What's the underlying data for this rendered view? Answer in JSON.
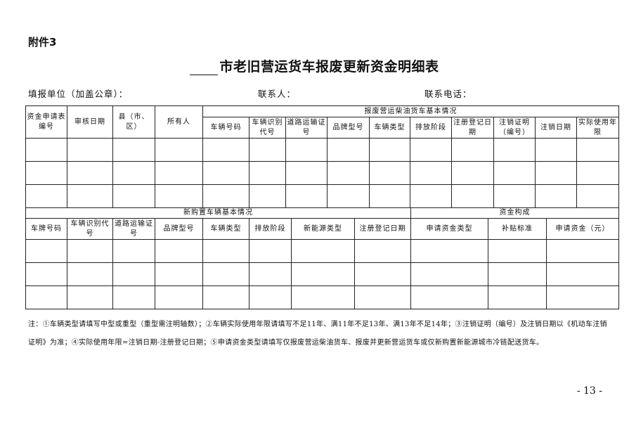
{
  "attachment": "附件3",
  "title": "市老旧营运货车报废更新资金明细表",
  "meta": {
    "unit": "填报单位（加盖公章）：",
    "contact": "联系人：",
    "phone": "联系电话："
  },
  "table1": {
    "left_headers": [
      "资金申请表编号",
      "审核日期",
      "县（市、区）",
      "所有人"
    ],
    "group": "报废营运柴油货车基本情况",
    "sub_headers": [
      "车辆号码",
      "车辆识别代号",
      "道路运输证号",
      "品牌型号",
      "车辆类型",
      "排放阶段",
      "注册登记日期",
      "注销证明（编号）",
      "注销日期",
      "实际使用年限"
    ]
  },
  "table2": {
    "group1": "新购置车辆基本情况",
    "group2": "资金构成",
    "headers": [
      "车牌号码",
      "车辆识别代号",
      "道路运输证号",
      "品牌型号",
      "车辆类型",
      "排放阶段",
      "新能源类型",
      "注册登记日期",
      "申请资金类型",
      "补贴标准",
      "申请资金（元）"
    ]
  },
  "note": "注：①车辆类型请填写中型或重型（重型需注明轴数）；②车辆实际使用年限请填写不足11年、满11年不足13年、满13年不足14年；③注销证明（编号）及注销日期以《机动车注销证明》为准；④实际使用年限=注销日期-注册登记日期；⑤申请资金类型请填写仅报废营运柴油货车、报废并更新营运货车或仅新购置新能源城市冷链配送货车。",
  "page_number": "- 13 -"
}
